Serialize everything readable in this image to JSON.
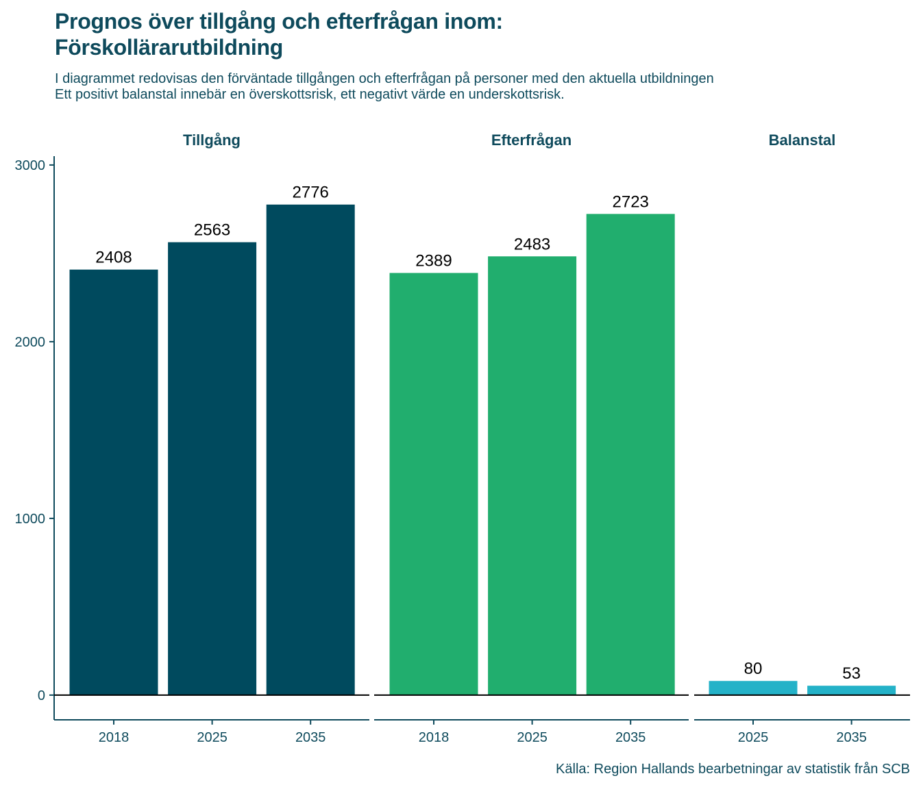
{
  "title_lines": [
    "Prognos över tillgång och efterfrågan inom:",
    "Förskollärarutbildning"
  ],
  "subtitle_lines": [
    "I diagrammet redovisas den förväntade tillgången och efterfrågan på personer med den aktuella utbildningen",
    "Ett positivt balanstal innebär en överskottsrisk, ett negativt värde en underskottsrisk."
  ],
  "caption": "Källa: Region Hallands bearbetningar av statistik från SCB",
  "chart_data": {
    "type": "bar",
    "ylim": [
      -140,
      3050
    ],
    "yticks": [
      0,
      1000,
      2000,
      3000
    ],
    "grid": false,
    "panels": [
      {
        "name": "Tillgång",
        "color": "#004a5e",
        "categories": [
          "2018",
          "2025",
          "2035"
        ],
        "values": [
          2408,
          2563,
          2776
        ]
      },
      {
        "name": "Efterfrågan",
        "color": "#21ae6e",
        "categories": [
          "2018",
          "2025",
          "2035"
        ],
        "values": [
          2389,
          2483,
          2723
        ]
      },
      {
        "name": "Balanstal",
        "color": "#24b2c8",
        "categories": [
          "2025",
          "2035"
        ],
        "values": [
          80,
          53
        ]
      }
    ]
  }
}
